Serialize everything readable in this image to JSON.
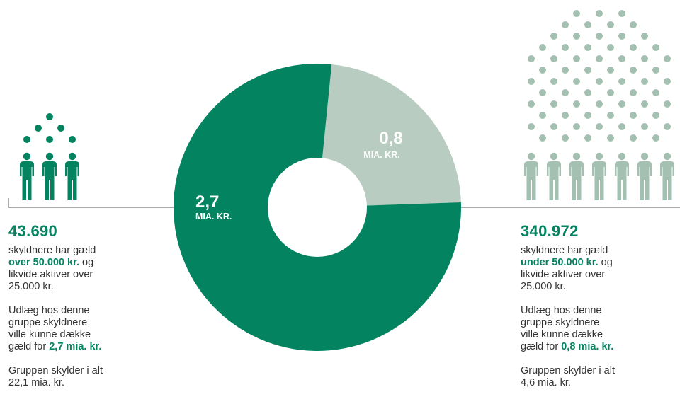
{
  "colors": {
    "dark_green": "#03835f",
    "light_green": "#b8ccc1",
    "dot_light": "#a3c0b0",
    "line": "#777777",
    "text": "#333333"
  },
  "chart_data": {
    "type": "pie",
    "donut": true,
    "unit": "mia. kr.",
    "slices": [
      {
        "value": 0.8,
        "label_value": "0,8",
        "label_unit": "MIA. KR.",
        "color": "#b8ccc1"
      },
      {
        "value": 2.7,
        "label_value": "2,7",
        "label_unit": "MIA. KR.",
        "color": "#03835f"
      }
    ]
  },
  "left_group": {
    "count": "43.690",
    "line1": "skyldnere har gæld",
    "threshold": "over 50.000 kr.",
    "line2_suffix": " og",
    "line3": "likvide aktiver over",
    "line4": "25.000 kr.",
    "cover_1": "Udlæg hos denne",
    "cover_2": "gruppe skyldnere",
    "cover_3": "ville kunne dække",
    "cover_4_prefix": "gæld for ",
    "cover_amount": "2,7 mia. kr.",
    "total_1": "Gruppen skylder i alt",
    "total_2": "22,1 mia. kr."
  },
  "right_group": {
    "count": "340.972",
    "line1": "skyldnere har gæld",
    "threshold": "under 50.000 kr.",
    "line2_suffix": " og",
    "line3": "likvide aktiver over",
    "line4": "25.000 kr.",
    "cover_1": "Udlæg hos denne",
    "cover_2": "gruppe skyldnere",
    "cover_3": "ville kunne dække",
    "cover_4_prefix": "gæld for ",
    "cover_amount": "0,8 mia. kr.",
    "total_1": "Gruppen skylder i alt",
    "total_2": "4,6 mia. kr."
  }
}
